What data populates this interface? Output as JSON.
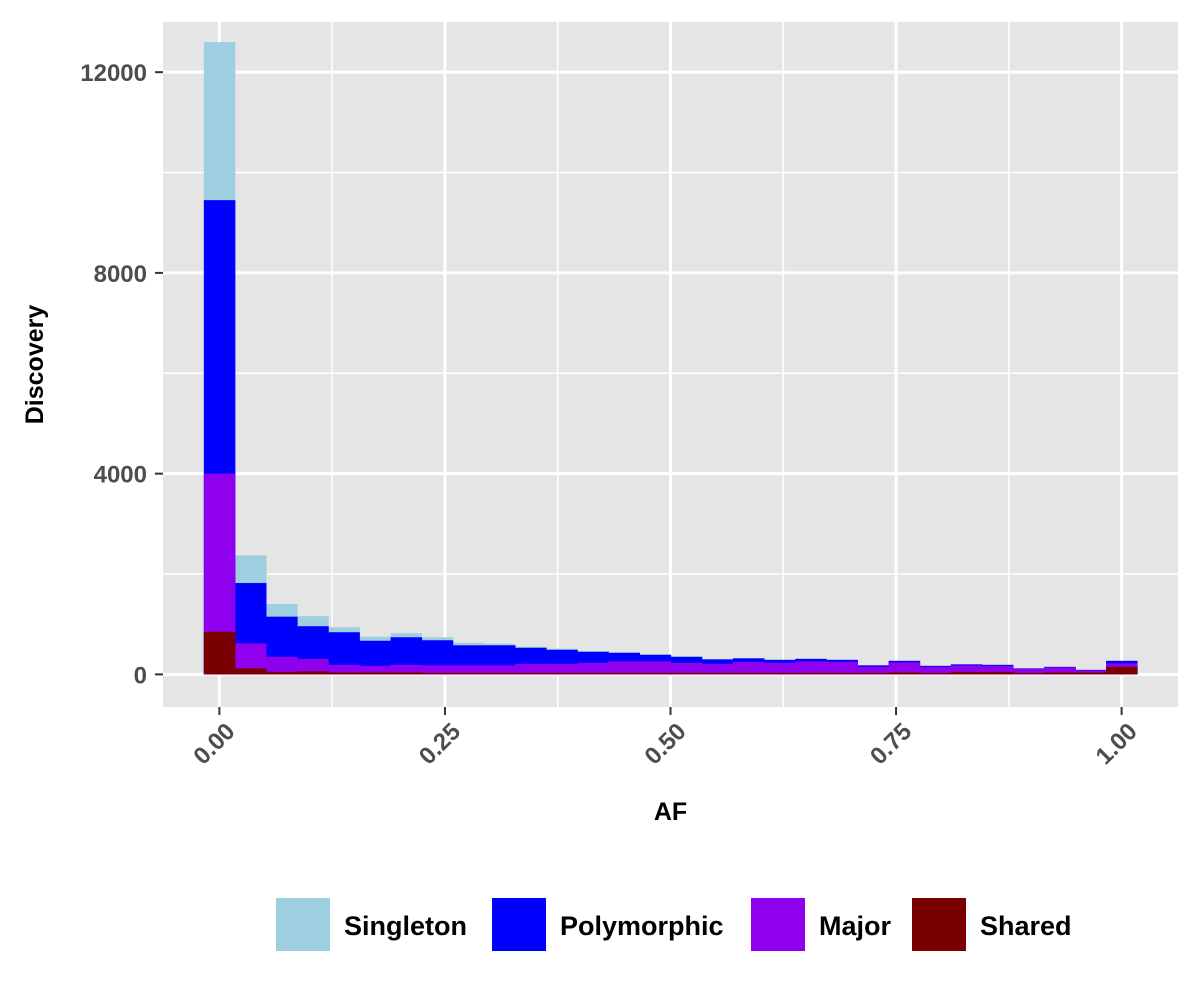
{
  "chart_data": {
    "type": "bar",
    "stacked": true,
    "title": "",
    "xlabel": "AF",
    "ylabel": "Discovery",
    "xlim": [
      -0.0625,
      1.0625
    ],
    "ylim": [
      -650,
      13000
    ],
    "x_ticks": [
      0.0,
      0.25,
      0.5,
      0.75,
      1.0
    ],
    "x_tick_labels": [
      "0.00",
      "0.25",
      "0.50",
      "0.75",
      "1.00"
    ],
    "y_ticks": [
      0,
      4000,
      8000,
      12000
    ],
    "y_tick_labels": [
      "0",
      "4000",
      "8000",
      "12000"
    ],
    "grid": true,
    "legend_position": "bottom",
    "bin_width": 0.0345,
    "x": [
      0.0,
      0.0345,
      0.069,
      0.1035,
      0.138,
      0.1725,
      0.207,
      0.2415,
      0.276,
      0.3105,
      0.345,
      0.3795,
      0.414,
      0.4485,
      0.483,
      0.5175,
      0.552,
      0.5865,
      0.621,
      0.6555,
      0.69,
      0.7245,
      0.759,
      0.7935,
      0.828,
      0.8625,
      0.897,
      0.9315,
      0.966,
      1.0
    ],
    "series": [
      {
        "name": "Singleton",
        "color": "#9ecfe0",
        "values": [
          3150,
          550,
          250,
          200,
          100,
          80,
          80,
          60,
          50,
          30,
          20,
          20,
          15,
          10,
          10,
          10,
          0,
          0,
          0,
          0,
          0,
          0,
          0,
          0,
          0,
          0,
          0,
          0,
          0,
          0
        ]
      },
      {
        "name": "Polymorphic",
        "color": "#0000ff",
        "values": [
          5450,
          1200,
          800,
          650,
          650,
          500,
          550,
          500,
          400,
          400,
          320,
          280,
          220,
          170,
          130,
          120,
          90,
          70,
          60,
          50,
          40,
          30,
          30,
          20,
          20,
          20,
          10,
          10,
          10,
          50
        ]
      },
      {
        "name": "Major",
        "color": "#8f00ee",
        "values": [
          3150,
          500,
          300,
          250,
          150,
          130,
          150,
          150,
          150,
          150,
          180,
          180,
          200,
          230,
          230,
          200,
          180,
          220,
          200,
          230,
          220,
          120,
          200,
          120,
          130,
          120,
          80,
          100,
          40,
          70
        ]
      },
      {
        "name": "Shared",
        "color": "#7a0000",
        "values": [
          850,
          120,
          50,
          60,
          40,
          40,
          40,
          30,
          30,
          30,
          30,
          30,
          30,
          30,
          30,
          30,
          30,
          30,
          30,
          30,
          30,
          30,
          40,
          30,
          50,
          50,
          30,
          40,
          40,
          150
        ]
      }
    ]
  }
}
